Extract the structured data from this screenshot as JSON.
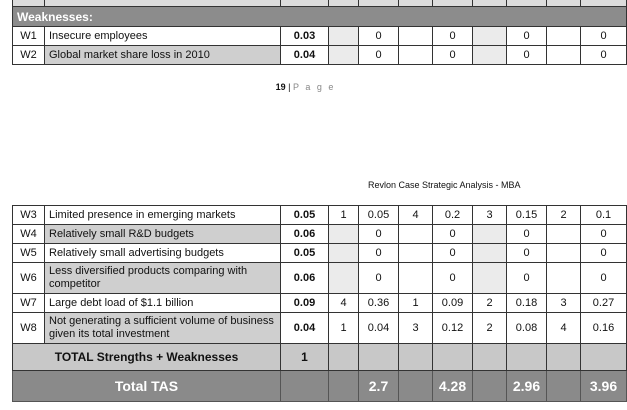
{
  "top_section": {
    "header": "Weaknesses:",
    "rows": [
      {
        "id": "W1",
        "factor": "Insecure employees",
        "weight": "0.03",
        "cells": [
          "",
          "",
          "0",
          "",
          "0",
          "",
          "0",
          "",
          "0"
        ]
      },
      {
        "id": "W2",
        "factor": "Global market share loss in 2010",
        "weight": "0.04",
        "cells": [
          "",
          "",
          "0",
          "",
          "0",
          "",
          "0",
          "",
          "0"
        ]
      }
    ]
  },
  "page_footer": {
    "number": "19",
    "separator": "|",
    "word": "P a g e"
  },
  "doc_header": "Revlon Case Strategic Analysis - MBA",
  "bottom_section": {
    "rows": [
      {
        "id": "W3",
        "factor": "Limited presence in emerging markets",
        "weight": "0.05",
        "cells": [
          "1",
          "0.05",
          "4",
          "0.2",
          "3",
          "0.15",
          "2",
          "0.1"
        ]
      },
      {
        "id": "W4",
        "factor": "Relatively small R&D budgets",
        "weight": "0.06",
        "cells": [
          "",
          "0",
          "",
          "0",
          "",
          "0",
          "",
          "0"
        ]
      },
      {
        "id": "W5",
        "factor": "Relatively small advertising budgets",
        "weight": "0.05",
        "cells": [
          "",
          "0",
          "",
          "0",
          "",
          "0",
          "",
          "0"
        ]
      },
      {
        "id": "W6",
        "factor": "Less diversified products comparing with competitor",
        "weight": "0.06",
        "cells": [
          "",
          "0",
          "",
          "0",
          "",
          "0",
          "",
          "0"
        ]
      },
      {
        "id": "W7",
        "factor": "Large debt load of $1.1 billion",
        "weight": "0.09",
        "cells": [
          "4",
          "0.36",
          "1",
          "0.09",
          "2",
          "0.18",
          "3",
          "0.27"
        ]
      },
      {
        "id": "W8",
        "factor": "Not generating a sufficient volume of business given its total investment",
        "weight": "0.04",
        "cells": [
          "1",
          "0.04",
          "3",
          "0.12",
          "2",
          "0.08",
          "4",
          "0.16"
        ]
      }
    ],
    "total_sw": {
      "label": "TOTAL Strengths + Weaknesses",
      "value": "1"
    },
    "total_tas": {
      "label": "Total TAS",
      "values": [
        "2.7",
        "4.28",
        "2.96",
        "3.96"
      ]
    }
  }
}
